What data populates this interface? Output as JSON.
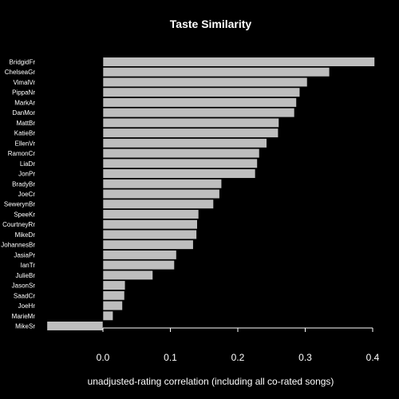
{
  "chart_data": {
    "type": "bar",
    "orientation": "horizontal",
    "title": "Taste Similarity",
    "xlabel": "unadjusted-rating correlation (including all co-rated songs)",
    "ylabel": "",
    "xlim": [
      -0.08,
      0.4
    ],
    "xticks": [
      0.0,
      0.1,
      0.2,
      0.3,
      0.4
    ],
    "xtick_labels": [
      "0.0",
      "0.1",
      "0.2",
      "0.3",
      "0.4"
    ],
    "grid": false,
    "legend": "none",
    "categories": [
      "BridgidFr",
      "ChelseaGr",
      "VimalVr",
      "PippaNr",
      "MarkAr",
      "DanMor",
      "MattBr",
      "KatieBr",
      "EllenVr",
      "RamonCr",
      "LiaDr",
      "JonPr",
      "BradyBr",
      "JoeCr",
      "SewerynBr",
      "SpeeKr",
      "CourtneyRr",
      "MikeDr",
      "JohannesBr",
      "JasiaPr",
      "IanTr",
      "JulieBr",
      "JasonSr",
      "SaadCr",
      "JoeHr",
      "MarieMr",
      "MikeSr"
    ],
    "values": [
      0.403,
      0.336,
      0.303,
      0.292,
      0.287,
      0.284,
      0.261,
      0.26,
      0.243,
      0.232,
      0.229,
      0.226,
      0.176,
      0.173,
      0.164,
      0.142,
      0.14,
      0.139,
      0.134,
      0.109,
      0.106,
      0.074,
      0.033,
      0.032,
      0.029,
      0.015,
      -0.083
    ],
    "colors": {
      "background": "#000000",
      "bar_fill": "#bebebe",
      "bar_stroke": "#000000",
      "text": "#ffffff",
      "axis": "#ffffff"
    }
  }
}
